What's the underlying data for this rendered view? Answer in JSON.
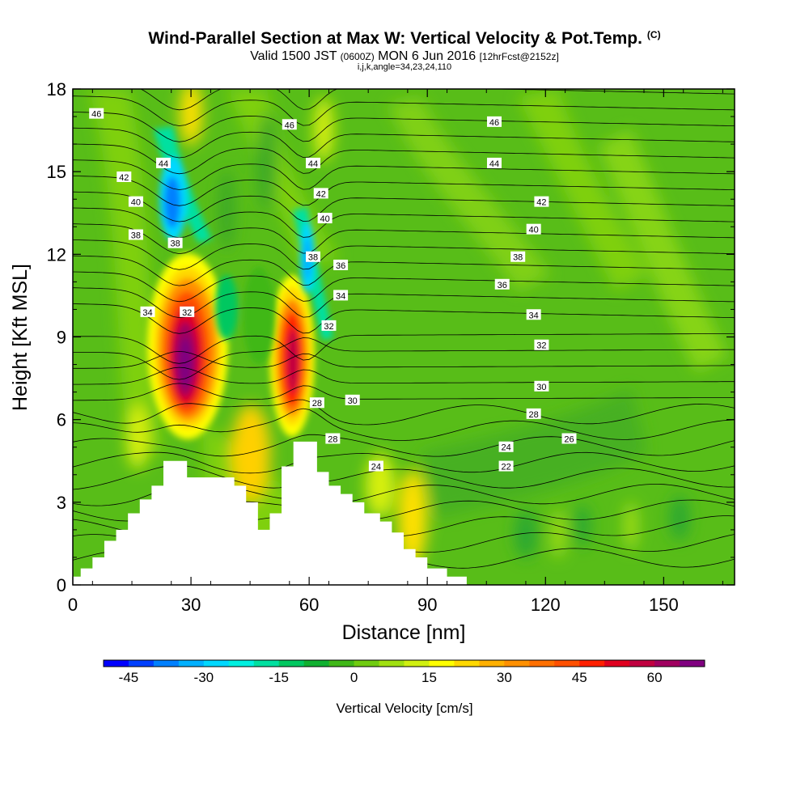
{
  "title_main": "Wind-Parallel Section at Max W: Vertical Velocity & Pot.Temp.",
  "title_copyright": "(C)",
  "subtitle_a": "Valid 1500 JST",
  "subtitle_b": "(0600Z)",
  "subtitle_c": "MON 6 Jun 2016",
  "subtitle_d": "[12hrFcst@2152z]",
  "subtitle_line2": "i,j,k,angle=34,23,24,110",
  "chart_data": {
    "type": "heatmap",
    "xlabel": "Distance [nm]",
    "ylabel": "Height [Kft MSL]",
    "xlim": [
      0,
      168
    ],
    "ylim": [
      0,
      18
    ],
    "x_ticks": [
      0,
      30,
      60,
      90,
      120,
      150
    ],
    "y_ticks": [
      0,
      3,
      6,
      9,
      12,
      15,
      18
    ],
    "colorbar": {
      "label": "Vertical Velocity [cm/s]",
      "ticks": [
        -45,
        -30,
        -15,
        0,
        15,
        30,
        45,
        60
      ],
      "range": [
        -50,
        70
      ],
      "step": 5,
      "colors": [
        "#0000ff",
        "#0040ff",
        "#0080ff",
        "#00b0ff",
        "#00d8ff",
        "#00f0e0",
        "#00e0a0",
        "#00c860",
        "#10b030",
        "#40b818",
        "#70cc10",
        "#a0e010",
        "#d0f010",
        "#ffff00",
        "#ffd800",
        "#ffb000",
        "#ff9000",
        "#ff7000",
        "#ff5000",
        "#ff2000",
        "#e00020",
        "#c00040",
        "#a00060",
        "#800080"
      ]
    },
    "terrain_profile": {
      "x": [
        0,
        2,
        2,
        5,
        5,
        8,
        8,
        11,
        11,
        14,
        14,
        17,
        17,
        20,
        20,
        23,
        23,
        26,
        26,
        29,
        29,
        32,
        32,
        35,
        35,
        38,
        38,
        41,
        41,
        44,
        44,
        47,
        47,
        50,
        50,
        53,
        53,
        56,
        56,
        60,
        60,
        62,
        62,
        65,
        65,
        68,
        68,
        71,
        71,
        74,
        74,
        78,
        78,
        81,
        81,
        84,
        84,
        87,
        87,
        90,
        90,
        95,
        95,
        100,
        100,
        168
      ],
      "height": [
        0.3,
        0.3,
        0.6,
        0.6,
        1.0,
        1.0,
        1.6,
        1.6,
        2.0,
        2.0,
        2.6,
        2.6,
        3.1,
        3.1,
        3.6,
        3.6,
        4.5,
        4.5,
        4.5,
        4.5,
        3.9,
        3.9,
        3.9,
        3.9,
        3.9,
        3.9,
        3.9,
        3.9,
        3.6,
        3.6,
        3.0,
        3.0,
        2.0,
        2.0,
        2.6,
        2.6,
        4.3,
        4.3,
        5.2,
        5.2,
        5.2,
        5.2,
        4.1,
        4.1,
        3.6,
        3.6,
        3.3,
        3.3,
        3.0,
        3.0,
        2.6,
        2.6,
        2.3,
        2.3,
        1.9,
        1.9,
        1.3,
        1.3,
        1.0,
        1.0,
        0.6,
        0.6,
        0.3,
        0.3,
        0.0,
        0.0
      ]
    },
    "updrafts": [
      {
        "x": 29,
        "height": 8.0,
        "peak_cm_s": 70
      },
      {
        "x": 56,
        "height": 8.8,
        "peak_cm_s": 50
      }
    ],
    "downdrafts": [
      {
        "x": 26,
        "height": 13.8,
        "min_cm_s": -40
      },
      {
        "x": 60,
        "height": 11.8,
        "min_cm_s": -30
      }
    ],
    "isentrope_labels": [
      {
        "text": "46",
        "x": 6,
        "y": 17.1
      },
      {
        "text": "44",
        "x": 23,
        "y": 15.3
      },
      {
        "text": "42",
        "x": 13,
        "y": 14.8
      },
      {
        "text": "40",
        "x": 16,
        "y": 13.9
      },
      {
        "text": "38",
        "x": 16,
        "y": 12.7
      },
      {
        "text": "38",
        "x": 26,
        "y": 12.4
      },
      {
        "text": "34",
        "x": 19,
        "y": 9.9
      },
      {
        "text": "32",
        "x": 29,
        "y": 9.9
      },
      {
        "text": "46",
        "x": 55,
        "y": 16.7
      },
      {
        "text": "44",
        "x": 61,
        "y": 15.3
      },
      {
        "text": "42",
        "x": 63,
        "y": 14.2
      },
      {
        "text": "40",
        "x": 64,
        "y": 13.3
      },
      {
        "text": "38",
        "x": 61,
        "y": 11.9
      },
      {
        "text": "36",
        "x": 68,
        "y": 11.6
      },
      {
        "text": "34",
        "x": 68,
        "y": 10.5
      },
      {
        "text": "32",
        "x": 65,
        "y": 9.4
      },
      {
        "text": "28",
        "x": 62,
        "y": 6.6
      },
      {
        "text": "30",
        "x": 71,
        "y": 6.7
      },
      {
        "text": "28",
        "x": 66,
        "y": 5.3
      },
      {
        "text": "24",
        "x": 77,
        "y": 4.3
      },
      {
        "text": "46",
        "x": 107,
        "y": 16.8
      },
      {
        "text": "44",
        "x": 107,
        "y": 15.3
      },
      {
        "text": "42",
        "x": 119,
        "y": 13.9
      },
      {
        "text": "40",
        "x": 117,
        "y": 12.9
      },
      {
        "text": "38",
        "x": 113,
        "y": 11.9
      },
      {
        "text": "36",
        "x": 109,
        "y": 10.9
      },
      {
        "text": "34",
        "x": 117,
        "y": 9.8
      },
      {
        "text": "32",
        "x": 119,
        "y": 8.7
      },
      {
        "text": "30",
        "x": 119,
        "y": 7.2
      },
      {
        "text": "28",
        "x": 117,
        "y": 6.2
      },
      {
        "text": "26",
        "x": 126,
        "y": 5.3
      },
      {
        "text": "24",
        "x": 110,
        "y": 5.0
      },
      {
        "text": "22",
        "x": 110,
        "y": 4.3
      }
    ]
  }
}
